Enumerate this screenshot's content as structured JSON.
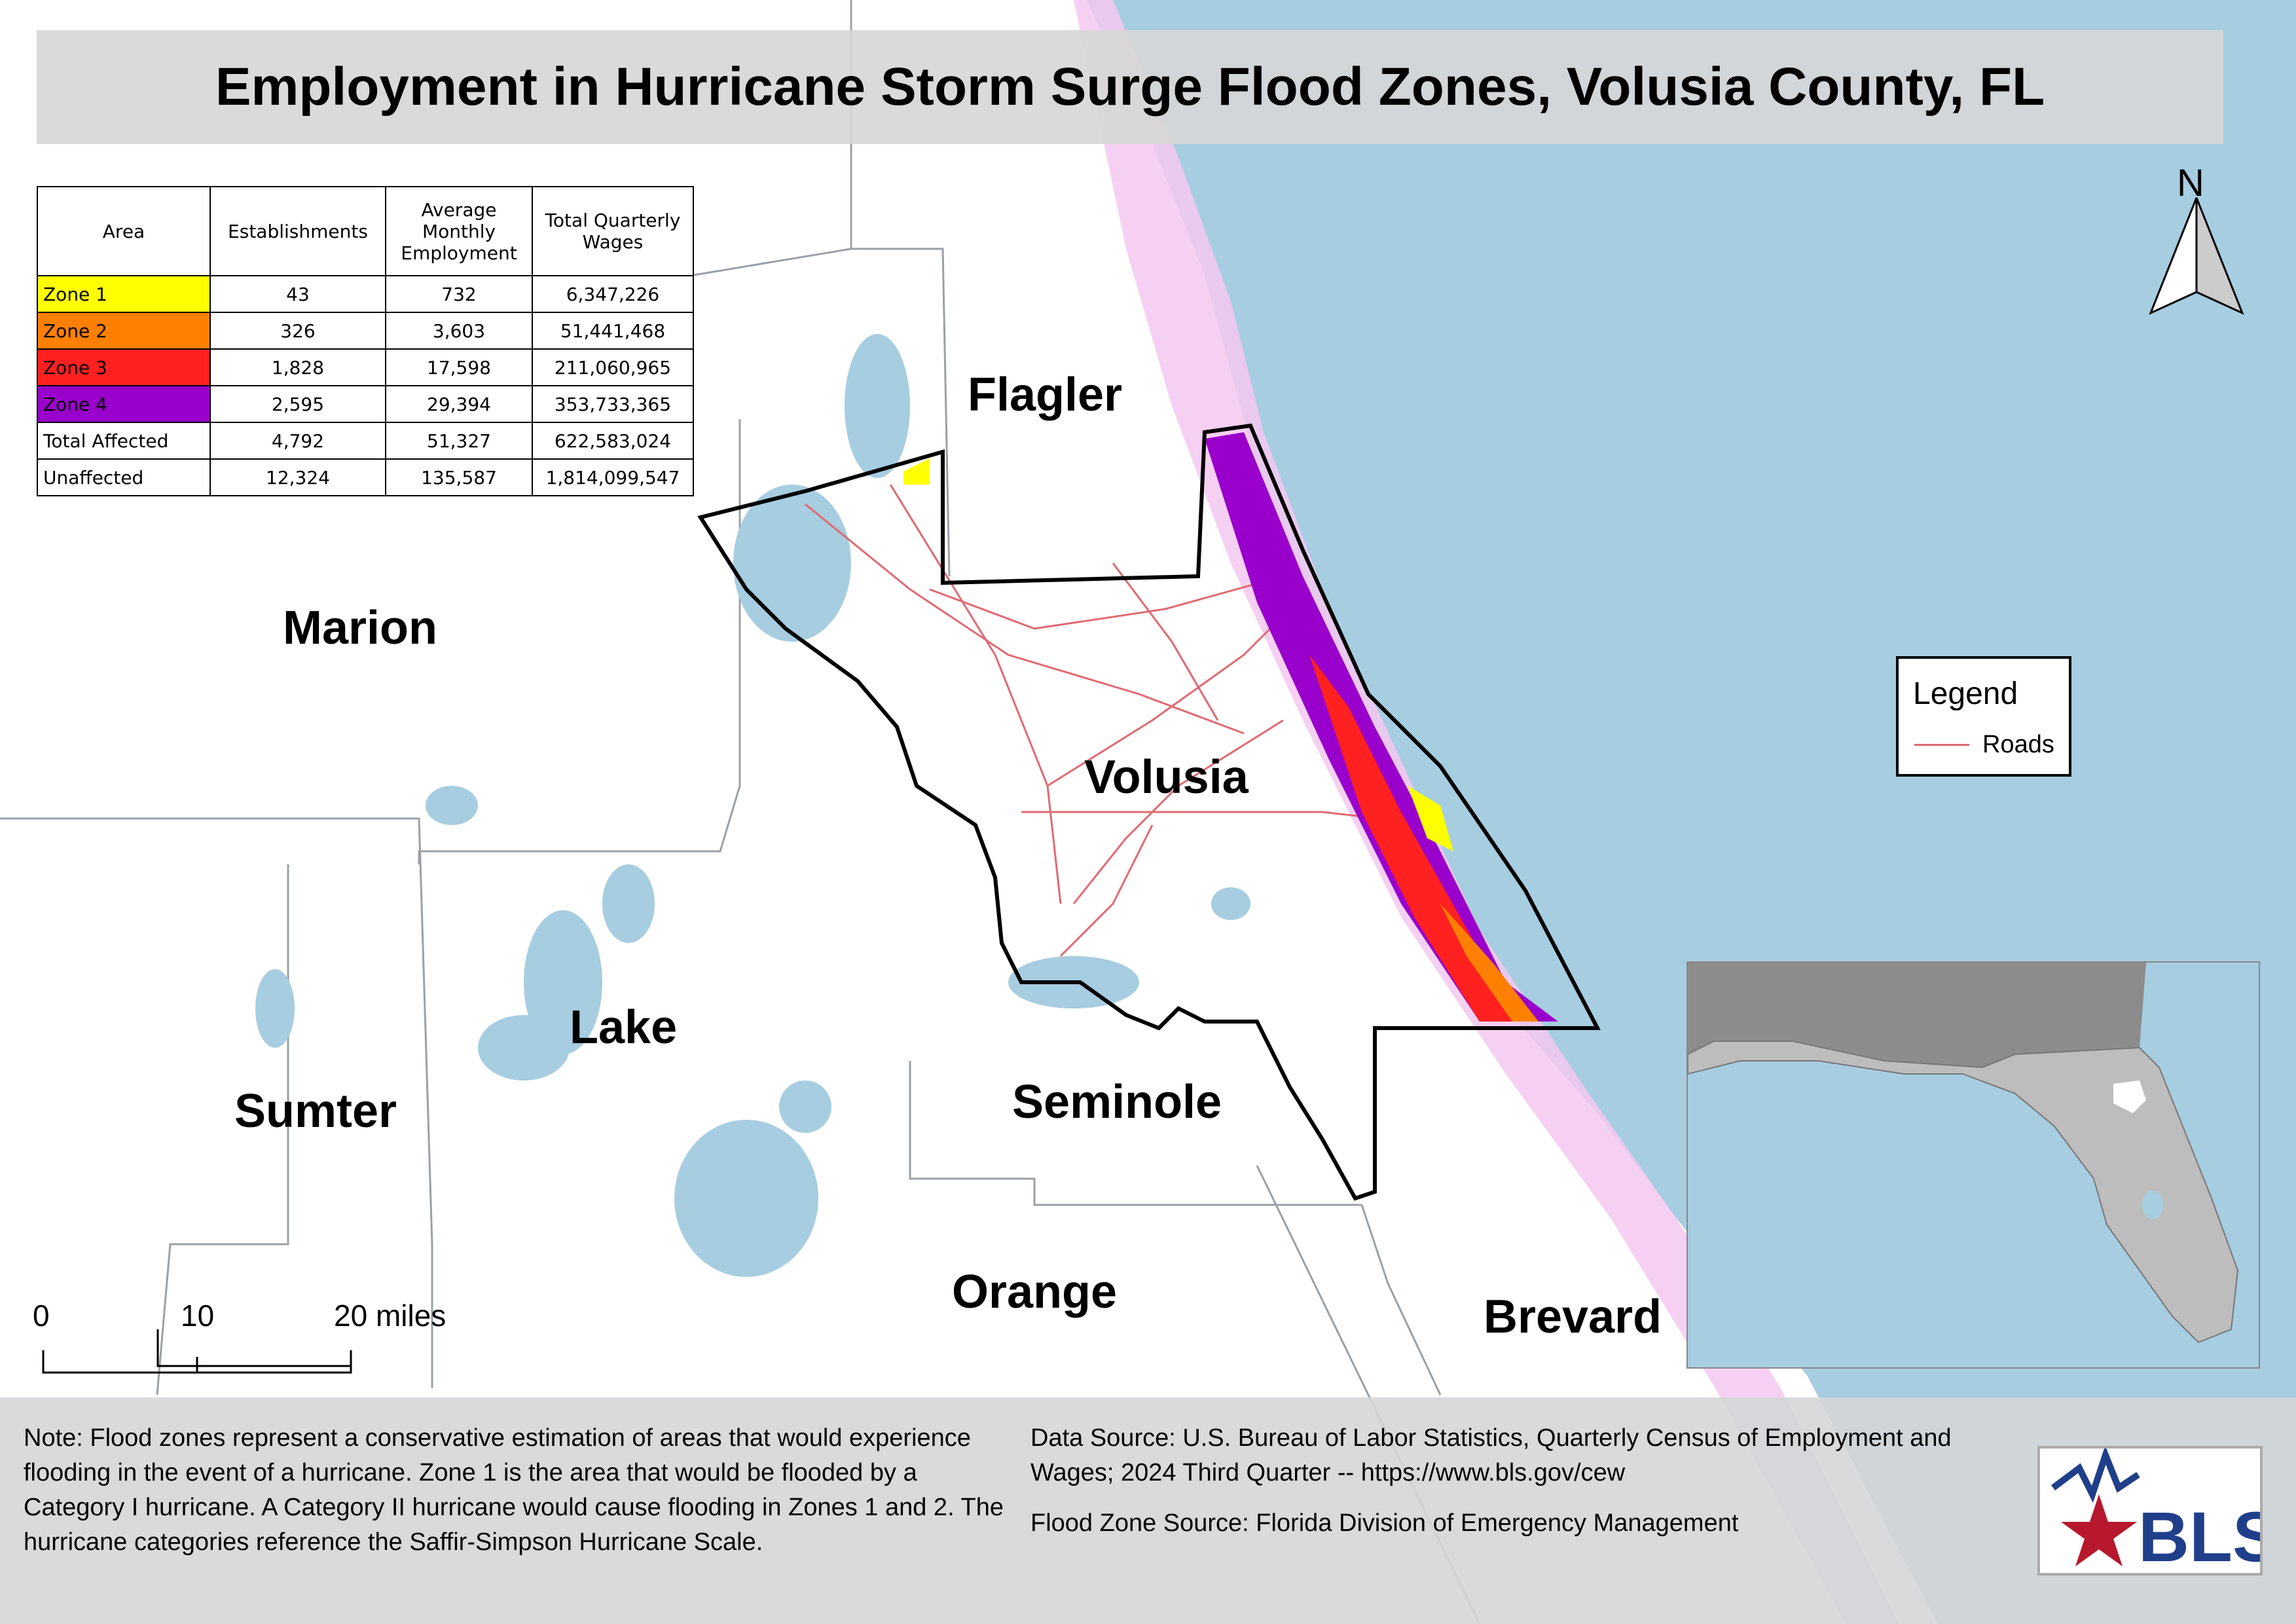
{
  "title": "Employment in Hurricane Storm Surge Flood Zones, Volusia County, FL",
  "counties": [
    "Flagler",
    "Marion",
    "Volusia",
    "Lake",
    "Sumter",
    "Seminole",
    "Orange",
    "Brevard"
  ],
  "table": {
    "headers": [
      "Area",
      "Establishments",
      "Average Monthly Employment",
      "Total Quarterly Wages"
    ],
    "rows": [
      {
        "area": "Zone 1",
        "establishments": "43",
        "employment": "732",
        "wages": "6,347,226",
        "color": "#ffff00"
      },
      {
        "area": "Zone 2",
        "establishments": "326",
        "employment": "3,603",
        "wages": "51,441,468",
        "color": "#ff8000"
      },
      {
        "area": "Zone 3",
        "establishments": "1,828",
        "employment": "17,598",
        "wages": "211,060,965",
        "color": "#ff2020"
      },
      {
        "area": "Zone 4",
        "establishments": "2,595",
        "employment": "29,394",
        "wages": "353,733,365",
        "color": "#9a00cc"
      },
      {
        "area": "Total Affected",
        "establishments": "4,792",
        "employment": "51,327",
        "wages": "622,583,024",
        "color": "#ffffff"
      },
      {
        "area": "Unaffected",
        "establishments": "12,324",
        "employment": "135,587",
        "wages": "1,814,099,547",
        "color": "#ffffff"
      }
    ]
  },
  "legend": {
    "title": "Legend",
    "roads_label": "Roads",
    "roads_color": "#e06a72"
  },
  "north_label": "N",
  "scale": {
    "labels": [
      "0",
      "10",
      "20 miles"
    ]
  },
  "note": "Note: Flood zones represent a conservative estimation of areas that would experience flooding in the event of a hurricane. Zone 1 is the area that would be flooded by a Category I hurricane. A Category II hurricane would cause flooding in Zones 1 and 2. The hurricane categories reference the Saffir-Simpson Hurricane Scale.",
  "data_source": "Data Source: U.S. Bureau of Labor Statistics, Quarterly Census of Employment and Wages; 2024 Third Quarter -- https://www.bls.gov/cew",
  "flood_source": "Flood Zone Source: Florida Division of Emergency Management",
  "logo_text": "BLS",
  "colors": {
    "ocean": "#a7cde1",
    "land": "#ffffff",
    "county_line": "#9aa0a6",
    "volusia_outline": "#000000",
    "lake": "#a7cde1"
  }
}
